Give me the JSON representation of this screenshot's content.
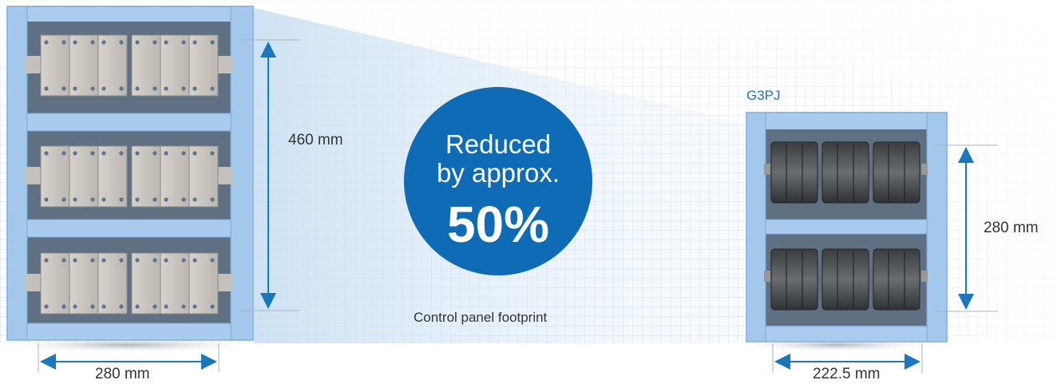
{
  "reduction": {
    "line1": "Reduced",
    "line2": "by approx.",
    "percent": "50%",
    "caption": "Control panel footprint"
  },
  "old_panel": {
    "height_label": "460 mm",
    "width_label": "280 mm"
  },
  "new_panel": {
    "product_name": "G3PJ",
    "height_label": "280 mm",
    "width_label": "222.5 mm"
  },
  "colors": {
    "accent": "#0f6bb5",
    "panel_frame": "#a8ccef",
    "panel_back": "#5b6e80",
    "arrow": "#1a77bd"
  }
}
